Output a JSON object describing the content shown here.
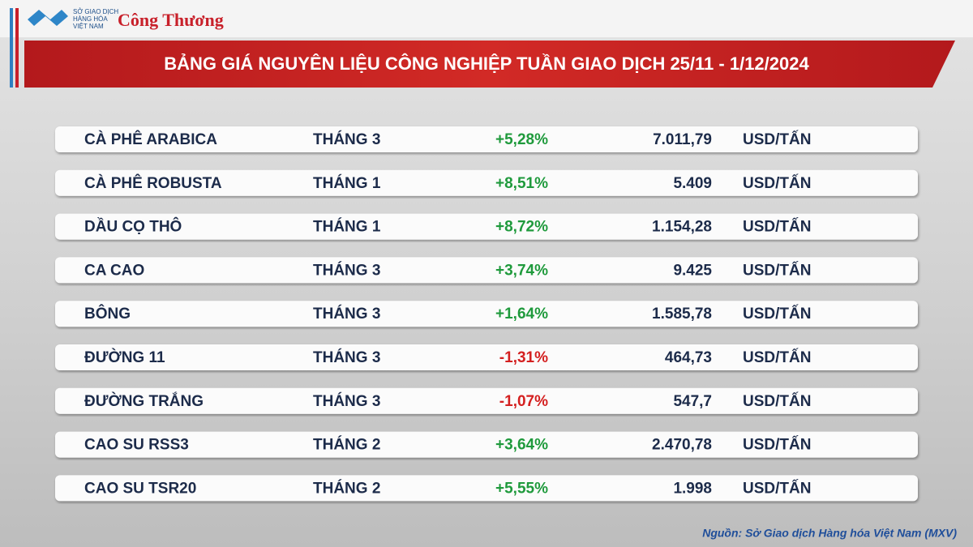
{
  "header": {
    "logo_lines": [
      "SỞ GIAO DỊCH",
      "HÀNG HÓA",
      "VIỆT NAM"
    ],
    "brand": "Công Thương",
    "title": "BẢNG GIÁ NGUYÊN LIỆU CÔNG NGHIỆP TUẦN GIAO DỊCH 25/11 - 1/12/2024"
  },
  "table": {
    "rows": [
      [
        "CÀ PHÊ ARABICA",
        "THÁNG 3",
        "+5,28%",
        "7.011,79",
        "USD/TẤN"
      ],
      [
        "CÀ PHÊ ROBUSTA",
        "THÁNG 1",
        "+8,51%",
        "5.409",
        "USD/TẤN"
      ],
      [
        "DẦU CỌ THÔ",
        "THÁNG 1",
        "+8,72%",
        "1.154,28",
        "USD/TẤN"
      ],
      [
        "CA CAO",
        "THÁNG 3",
        "+3,74%",
        "9.425",
        "USD/TẤN"
      ],
      [
        "BÔNG",
        "THÁNG 3",
        "+1,64%",
        "1.585,78",
        "USD/TẤN"
      ],
      [
        "ĐƯỜNG 11",
        "THÁNG 3",
        "-1,31%",
        "464,73",
        "USD/TẤN"
      ],
      [
        "ĐƯỜNG TRẮNG",
        "THÁNG 3",
        "-1,07%",
        "547,7",
        "USD/TẤN"
      ],
      [
        "CAO SU RSS3",
        "THÁNG 2",
        "+3,64%",
        "2.470,78",
        "USD/TẤN"
      ],
      [
        "CAO SU TSR20",
        "THÁNG 2",
        "+5,55%",
        "1.998",
        "USD/TẤN"
      ]
    ]
  },
  "footer": {
    "source": "Nguồn: Sở Giao dịch Hàng hóa Việt Nam (MXV)"
  }
}
